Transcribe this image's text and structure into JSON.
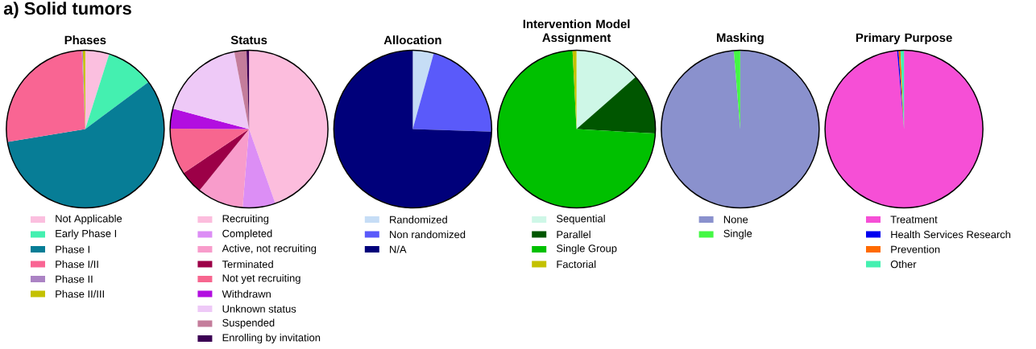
{
  "chart_data": [
    {
      "type": "other",
      "title": "a) Solid tumors"
    },
    {
      "type": "pie",
      "title": "Phases",
      "legend": "bottom",
      "categories": [
        "Not Applicable",
        "Early Phase I",
        "Phase I",
        "Phase I/II",
        "Phase II",
        "Phase II/III"
      ],
      "values": [
        4.9,
        9.9,
        57.6,
        26.9,
        0.2,
        0.5
      ],
      "colors": [
        "#fbbfdf",
        "#44f0b0",
        "#077d96",
        "#f96593",
        "#ab83c4",
        "#c4c100"
      ]
    },
    {
      "type": "pie",
      "title": "Status",
      "legend": "bottom",
      "categories": [
        "Recruiting",
        "Completed",
        "Active, not recruiting",
        "Terminated",
        "Not yet recruiting",
        "Withdrawn",
        "Unknown status",
        "Suspended",
        "Enrolling by invitation"
      ],
      "values": [
        44.6,
        6.7,
        9.5,
        4.8,
        9.5,
        4.1,
        17.8,
        2.5,
        0.5
      ],
      "colors": [
        "#fcbddd",
        "#dc8ef5",
        "#f89ccb",
        "#9c0047",
        "#f7668f",
        "#b20ee0",
        "#eec9f7",
        "#c47d9b",
        "#3b0053"
      ]
    },
    {
      "type": "pie",
      "title": "Allocation",
      "legend": "bottom",
      "categories": [
        "Randomized",
        "Non randomized",
        "N/A"
      ],
      "values": [
        4.3,
        21.2,
        74.5
      ],
      "colors": [
        "#c6ddf6",
        "#5a5afa",
        "#00007a"
      ]
    },
    {
      "type": "pie",
      "title": "Intervention Model Assignment",
      "legend": "bottom",
      "categories": [
        "Sequential",
        "Parallel",
        "Single Group",
        "Factorial"
      ],
      "values": [
        13.5,
        12.4,
        73.3,
        0.8
      ],
      "colors": [
        "#cef7e7",
        "#005600",
        "#00c000",
        "#c4c100"
      ]
    },
    {
      "type": "pie",
      "title": "Masking",
      "legend": "bottom",
      "categories": [
        "None",
        "Single"
      ],
      "values": [
        98.7,
        1.3
      ],
      "colors": [
        "#8a91cd",
        "#44f844"
      ]
    },
    {
      "type": "pie",
      "title": "Primary Purpose",
      "legend": "bottom",
      "categories": [
        "Treatment",
        "Health Services Research",
        "Prevention",
        "Other"
      ],
      "values": [
        98.6,
        0.3,
        0.4,
        0.7
      ],
      "colors": [
        "#f64fd6",
        "#0000f0",
        "#ff6a00",
        "#44f0b0"
      ]
    }
  ]
}
